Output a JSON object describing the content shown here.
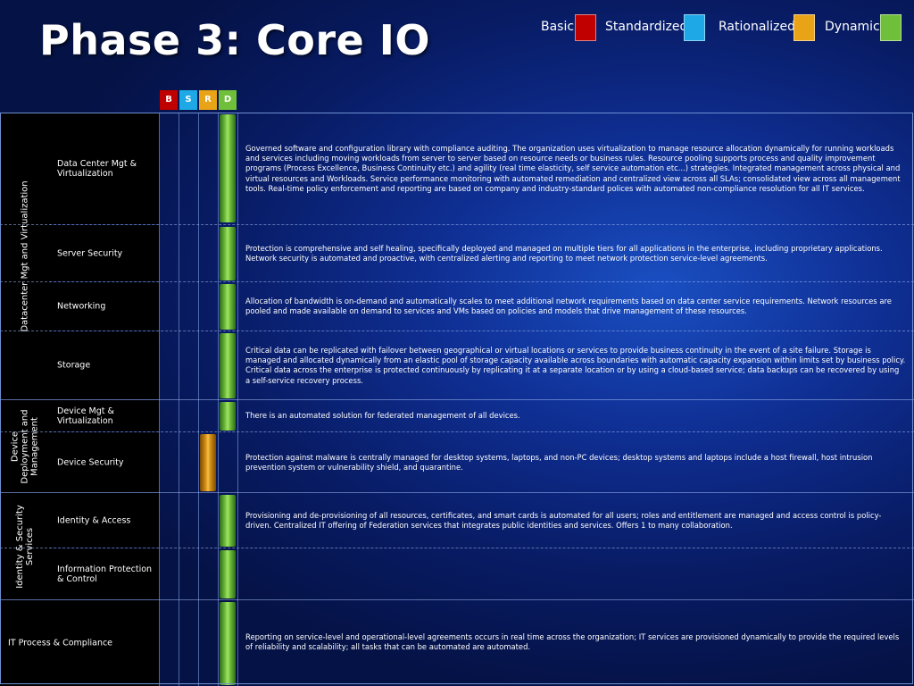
{
  "title": "Phase 3: Core IO",
  "colors": {
    "basic": "#c00000",
    "standardized": "#1fa8e6",
    "rationalized": "#e8a317",
    "dynamic": "#6fbf3a"
  },
  "legend": [
    {
      "label": "Basic",
      "color": "#c00000"
    },
    {
      "label": "Standardized",
      "color": "#1fa8e6"
    },
    {
      "label": "Rationalized",
      "color": "#e8a317"
    },
    {
      "label": "Dynamic",
      "color": "#6fbf3a"
    }
  ],
  "level_headers": [
    "B",
    "S",
    "R",
    "D"
  ],
  "categories": [
    {
      "label": "Datacenter Mgt and Virtualization"
    },
    {
      "label": "Device Deployment and Management"
    },
    {
      "label": "Identity & Security Services"
    }
  ],
  "rows": [
    {
      "name": "Data Center Mgt & Virtualization",
      "level": "D",
      "description": "Governed software and configuration library with compliance auditing.     The organization uses virtualization to manage resource allocation dynamically for running workloads and services including moving workloads from server to server based on resource needs or business rules. Resource pooling supports process and quality improvement programs (Process Excellence, Business Continuity etc.) and agility (real time elasticity, self service automation etc...) strategies. Integrated management across physical and virtual resources and Workloads. Service performance monitoring with automated remediation and centralized view across all SLAs; consolidated view across all management tools. Real-time policy enforcement and reporting are based on company and industry-standard polices with automated non-compliance resolution for all IT services."
    },
    {
      "name": "Server Security",
      "level": "D",
      "description": "Protection is comprehensive and self healing, specifically deployed and managed on multiple tiers for all applications in the enterprise, including proprietary applications. Network security is automated and proactive, with centralized alerting and reporting to meet network protection service-level agreements."
    },
    {
      "name": "Networking",
      "level": "D",
      "description": "Allocation of bandwidth is on-demand and automatically scales to meet additional network requirements based on data center service requirements. Network resources are pooled and made available on demand to services and VMs based on policies and models that drive management of these resources."
    },
    {
      "name": "Storage",
      "level": "D",
      "description": "Critical data can be replicated with failover between geographical or virtual locations or services to provide business continuity in the event of a site failure. Storage is managed and allocated dynamically from an elastic pool of storage capacity available across boundaries with automatic capacity expansion within limits set by business policy.  Critical data across the enterprise is protected continuously by replicating it at a separate location or by using a cloud-based service; data backups can be recovered by using a self-service recovery process."
    },
    {
      "name": "Device Mgt & Virtualization",
      "level": "D",
      "description": "There is an automated solution for federated management of all devices."
    },
    {
      "name": "Device Security",
      "level": "R",
      "description": "Protection against malware is centrally managed for desktop systems, laptops, and non-PC devices; desktop systems and laptops include a host firewall, host intrusion prevention system or vulnerability shield, and quarantine."
    },
    {
      "name": "Identity & Access",
      "level": "D",
      "description": "Provisioning and de-provisioning of all resources, certificates, and smart cards is automated for all users; roles and entitlement are managed and access control is policy-driven. Centralized IT offering of Federation services that integrates public identities and services. Offers 1 to many collaboration."
    },
    {
      "name": "Information Protection & Control",
      "level": "D",
      "description": ""
    },
    {
      "name": "IT Process & Compliance",
      "level": "D",
      "description": "Reporting on service-level and operational-level agreements occurs in real time across the organization; IT services are provisioned dynamically to provide the required levels of reliability and scalability; all tasks that can be automated are automated."
    }
  ]
}
